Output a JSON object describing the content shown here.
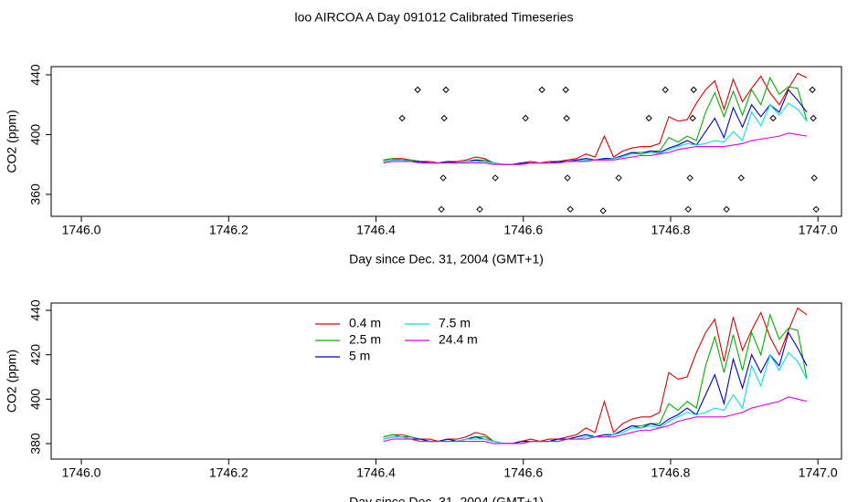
{
  "title": "loo AIRCOA A  Day 091012  Calibrated Timeseries",
  "chart_data": [
    {
      "type": "line",
      "xlabel": "Day since Dec. 31, 2004 (GMT+1)",
      "ylabel": "CO2 (ppm)",
      "xlim": [
        1745.959,
        1747.032
      ],
      "ylim": [
        345.3,
        445.5
      ],
      "xticks": [
        {
          "value": 1746,
          "label": "1746.0"
        },
        {
          "value": 1746.2,
          "label": "1746.2"
        },
        {
          "value": 1746.4,
          "label": "1746.4"
        },
        {
          "value": 1746.6,
          "label": "1746.6"
        },
        {
          "value": 1746.8,
          "label": "1746.8"
        },
        {
          "value": 1747,
          "label": "1747.0"
        }
      ],
      "yticks": [
        360,
        400,
        440
      ],
      "x": [
        1746.41,
        1746.4225,
        1746.435,
        1746.4475,
        1746.46,
        1746.4725,
        1746.485,
        1746.4975,
        1746.51,
        1746.5225,
        1746.535,
        1746.5475,
        1746.56,
        1746.5725,
        1746.585,
        1746.5975,
        1746.61,
        1746.6225,
        1746.635,
        1746.6475,
        1746.66,
        1746.6725,
        1746.685,
        1746.6975,
        1746.71,
        1746.7225,
        1746.735,
        1746.7475,
        1746.76,
        1746.7725,
        1746.785,
        1746.7975,
        1746.81,
        1746.8225,
        1746.835,
        1746.8475,
        1746.86,
        1746.8725,
        1746.885,
        1746.8975,
        1746.91,
        1746.9225,
        1746.935,
        1746.9475,
        1746.96,
        1746.9725,
        1746.985
      ],
      "series": [
        {
          "color": "#e00000",
          "values": [
            383,
            384,
            384,
            383,
            382,
            382,
            381,
            382,
            382,
            383,
            385,
            384,
            381,
            380,
            380,
            381,
            382,
            381,
            382,
            382,
            383,
            384,
            387,
            385,
            399,
            385,
            389,
            391,
            392,
            392,
            394,
            412,
            409,
            410,
            421,
            430,
            436,
            417,
            437,
            422,
            431,
            439,
            428,
            420,
            431,
            441,
            438
          ]
        },
        {
          "color": "#00b000",
          "values": [
            383,
            384,
            383,
            383,
            382,
            381,
            381,
            382,
            381,
            382,
            383,
            383,
            381,
            380,
            380,
            381,
            381,
            381,
            381,
            382,
            382,
            383,
            384,
            383,
            384,
            384,
            386,
            388,
            388,
            389,
            389,
            398,
            395,
            399,
            396,
            415,
            428,
            412,
            429,
            413,
            430,
            420,
            438,
            427,
            432,
            431,
            409
          ]
        },
        {
          "color": "#0000c8",
          "values": [
            382,
            383,
            383,
            382,
            382,
            381,
            381,
            382,
            381,
            382,
            383,
            382,
            381,
            380,
            380,
            381,
            381,
            381,
            381,
            382,
            382,
            383,
            384,
            383,
            384,
            384,
            386,
            388,
            387,
            389,
            388,
            391,
            393,
            396,
            393,
            402,
            411,
            398,
            418,
            405,
            420,
            412,
            420,
            415,
            430,
            423,
            415
          ]
        },
        {
          "color": "#00e0e0",
          "values": [
            382,
            383,
            383,
            382,
            381,
            381,
            381,
            381,
            381,
            382,
            382,
            382,
            381,
            380,
            380,
            380,
            381,
            381,
            381,
            381,
            382,
            382,
            383,
            383,
            383,
            384,
            385,
            387,
            387,
            388,
            387,
            390,
            392,
            394,
            393,
            394,
            396,
            395,
            402,
            396,
            415,
            406,
            420,
            413,
            421,
            417,
            409
          ]
        },
        {
          "color": "#e000e0",
          "values": [
            381,
            382,
            382,
            382,
            381,
            381,
            381,
            381,
            381,
            381,
            381,
            381,
            380,
            380,
            380,
            380,
            381,
            381,
            381,
            381,
            382,
            382,
            382,
            383,
            383,
            383,
            384,
            385,
            386,
            386,
            387,
            388,
            390,
            391,
            392,
            392,
            392,
            392,
            393,
            394,
            396,
            397,
            398,
            399,
            401,
            400,
            399
          ]
        }
      ],
      "markers": {
        "color": "#000000",
        "x": [
          1746.4355,
          1746.4566,
          1746.4888,
          1746.4913,
          1746.4926,
          1746.495,
          1746.5409,
          1746.562,
          1746.603,
          1746.6253,
          1746.6576,
          1746.6588,
          1746.66,
          1746.6638,
          1746.7084,
          1746.7295,
          1746.7705,
          1746.7928,
          1746.8238,
          1746.8263,
          1746.83,
          1746.8313,
          1746.8759,
          1746.8958,
          1746.9392,
          1746.9925,
          1746.9938,
          1746.995,
          1746.9975
        ],
        "values": [
          411,
          430,
          350,
          371,
          411,
          430,
          350,
          371,
          411,
          430,
          430,
          411,
          371,
          350,
          349,
          371,
          411,
          430,
          350,
          371,
          411,
          430,
          350,
          371,
          411,
          430,
          411,
          371,
          350
        ]
      }
    },
    {
      "type": "line",
      "xlabel": "Day since Dec. 31, 2004 (GMT+1)",
      "ylabel": "CO2 (ppm)",
      "xlim": [
        1745.959,
        1747.032
      ],
      "ylim": [
        373,
        443.3
      ],
      "xticks": [
        {
          "value": 1746,
          "label": "1746.0"
        },
        {
          "value": 1746.2,
          "label": "1746.2"
        },
        {
          "value": 1746.4,
          "label": "1746.4"
        },
        {
          "value": 1746.6,
          "label": "1746.6"
        },
        {
          "value": 1746.8,
          "label": "1746.8"
        },
        {
          "value": 1747,
          "label": "1747.0"
        }
      ],
      "yticks": [
        380,
        400,
        420,
        440
      ],
      "legend": "top",
      "x": [
        1746.41,
        1746.4225,
        1746.435,
        1746.4475,
        1746.46,
        1746.4725,
        1746.485,
        1746.4975,
        1746.51,
        1746.5225,
        1746.535,
        1746.5475,
        1746.56,
        1746.5725,
        1746.585,
        1746.5975,
        1746.61,
        1746.6225,
        1746.635,
        1746.6475,
        1746.66,
        1746.6725,
        1746.685,
        1746.6975,
        1746.71,
        1746.7225,
        1746.735,
        1746.7475,
        1746.76,
        1746.7725,
        1746.785,
        1746.7975,
        1746.81,
        1746.8225,
        1746.835,
        1746.8475,
        1746.86,
        1746.8725,
        1746.885,
        1746.8975,
        1746.91,
        1746.9225,
        1746.935,
        1746.9475,
        1746.96,
        1746.9725,
        1746.985
      ],
      "series": [
        {
          "name": "0.4 m",
          "color": "#e00000",
          "values": [
            383,
            384,
            384,
            383,
            382,
            382,
            381,
            382,
            382,
            383,
            385,
            384,
            381,
            380,
            380,
            381,
            382,
            381,
            382,
            382,
            383,
            384,
            387,
            385,
            399,
            385,
            389,
            391,
            392,
            392,
            394,
            412,
            409,
            410,
            421,
            430,
            436,
            417,
            437,
            422,
            431,
            439,
            428,
            420,
            431,
            441,
            438
          ]
        },
        {
          "name": "2.5 m",
          "color": "#00b000",
          "values": [
            383,
            384,
            383,
            383,
            382,
            381,
            381,
            382,
            381,
            382,
            383,
            383,
            381,
            380,
            380,
            381,
            381,
            381,
            381,
            382,
            382,
            383,
            384,
            383,
            384,
            384,
            386,
            388,
            388,
            389,
            389,
            398,
            395,
            399,
            396,
            415,
            428,
            412,
            429,
            413,
            430,
            420,
            438,
            427,
            432,
            431,
            409
          ]
        },
        {
          "name": "5 m",
          "color": "#0000c8",
          "values": [
            382,
            383,
            383,
            382,
            382,
            381,
            381,
            382,
            381,
            382,
            383,
            382,
            381,
            380,
            380,
            381,
            381,
            381,
            381,
            382,
            382,
            383,
            384,
            383,
            384,
            384,
            386,
            388,
            387,
            389,
            388,
            391,
            393,
            396,
            393,
            402,
            411,
            398,
            418,
            405,
            420,
            412,
            420,
            415,
            430,
            423,
            415
          ]
        },
        {
          "name": "7.5 m",
          "color": "#00e0e0",
          "values": [
            382,
            383,
            383,
            382,
            381,
            381,
            381,
            381,
            381,
            382,
            382,
            382,
            381,
            380,
            380,
            380,
            381,
            381,
            381,
            381,
            382,
            382,
            383,
            383,
            383,
            384,
            385,
            387,
            387,
            388,
            387,
            390,
            392,
            394,
            393,
            394,
            396,
            395,
            402,
            396,
            415,
            406,
            420,
            413,
            421,
            417,
            409
          ]
        },
        {
          "name": "24.4 m",
          "color": "#e000e0",
          "values": [
            381,
            382,
            382,
            382,
            381,
            381,
            381,
            381,
            381,
            381,
            381,
            381,
            380,
            380,
            380,
            380,
            381,
            381,
            381,
            381,
            382,
            382,
            382,
            383,
            383,
            383,
            384,
            385,
            386,
            386,
            387,
            388,
            390,
            391,
            392,
            392,
            392,
            392,
            393,
            394,
            396,
            397,
            398,
            399,
            401,
            400,
            399
          ]
        }
      ]
    }
  ]
}
